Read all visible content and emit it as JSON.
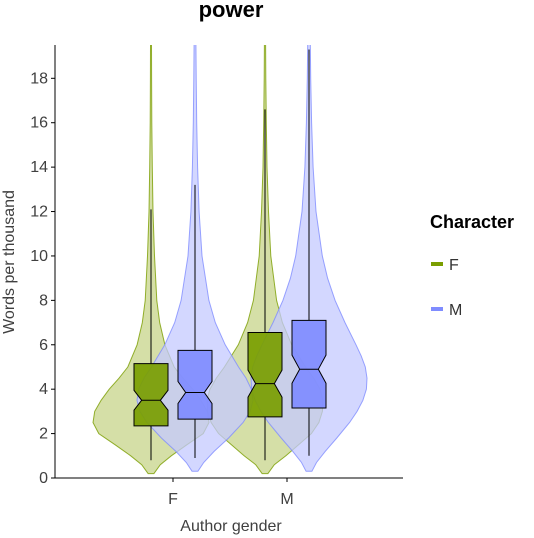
{
  "chart_data": {
    "type": "violin",
    "title": "power",
    "xlabel": "Author gender",
    "ylabel": "Words per thousand",
    "categories": [
      "F",
      "M"
    ],
    "ylim": [
      0,
      19.5
    ],
    "yticks": [
      0,
      2,
      4,
      6,
      8,
      10,
      12,
      14,
      16,
      18
    ],
    "grid": false,
    "legend": {
      "title": "Character",
      "position": "right",
      "entries": [
        {
          "label": "F",
          "color": "#7a9e00"
        },
        {
          "label": "M",
          "color": "#7f8cff"
        }
      ]
    },
    "series": [
      {
        "name": "F",
        "color": "#7a9e00",
        "fill": "#c7d48a",
        "groups": [
          {
            "category": "F",
            "box": {
              "q1": 2.35,
              "median": 3.5,
              "q3": 5.15,
              "whisker_low": 0.8,
              "whisker_high": 12.1
            },
            "violin": [
              [
                0.2,
                0.05
              ],
              [
                0.6,
                0.16
              ],
              [
                1.0,
                0.35
              ],
              [
                1.5,
                0.62
              ],
              [
                2.0,
                0.9
              ],
              [
                2.5,
                1.0
              ],
              [
                3.0,
                0.97
              ],
              [
                3.5,
                0.86
              ],
              [
                4.0,
                0.72
              ],
              [
                4.5,
                0.55
              ],
              [
                5.0,
                0.4
              ],
              [
                6.0,
                0.24
              ],
              [
                7.0,
                0.15
              ],
              [
                8.0,
                0.1
              ],
              [
                10.0,
                0.06
              ],
              [
                12.0,
                0.035
              ],
              [
                14.0,
                0.022
              ],
              [
                16.0,
                0.014
              ],
              [
                18.0,
                0.01
              ],
              [
                19.6,
                0.008
              ]
            ]
          },
          {
            "category": "M",
            "box": {
              "q1": 2.75,
              "median": 4.25,
              "q3": 6.55,
              "whisker_low": 0.8,
              "whisker_high": 16.6
            },
            "violin": [
              [
                0.2,
                0.05
              ],
              [
                0.6,
                0.16
              ],
              [
                1.0,
                0.36
              ],
              [
                1.5,
                0.58
              ],
              [
                2.0,
                0.8
              ],
              [
                2.5,
                0.93
              ],
              [
                3.0,
                0.99
              ],
              [
                3.5,
                1.0
              ],
              [
                4.0,
                0.95
              ],
              [
                4.5,
                0.84
              ],
              [
                5.0,
                0.7
              ],
              [
                6.0,
                0.46
              ],
              [
                7.0,
                0.3
              ],
              [
                8.0,
                0.2
              ],
              [
                10.0,
                0.1
              ],
              [
                12.0,
                0.06
              ],
              [
                14.0,
                0.035
              ],
              [
                16.0,
                0.022
              ],
              [
                18.0,
                0.014
              ],
              [
                19.6,
                0.01
              ]
            ]
          }
        ]
      },
      {
        "name": "M",
        "color": "#7f8cff",
        "fill": "#c4c9ff",
        "groups": [
          {
            "category": "F",
            "box": {
              "q1": 2.65,
              "median": 3.85,
              "q3": 5.75,
              "whisker_low": 0.9,
              "whisker_high": 13.2
            },
            "violin": [
              [
                0.3,
                0.05
              ],
              [
                0.7,
                0.15
              ],
              [
                1.2,
                0.33
              ],
              [
                1.8,
                0.58
              ],
              [
                2.5,
                0.83
              ],
              [
                3.0,
                0.95
              ],
              [
                3.5,
                1.0
              ],
              [
                4.0,
                0.97
              ],
              [
                4.5,
                0.88
              ],
              [
                5.0,
                0.75
              ],
              [
                6.0,
                0.52
              ],
              [
                7.0,
                0.35
              ],
              [
                8.0,
                0.24
              ],
              [
                10.0,
                0.12
              ],
              [
                12.0,
                0.07
              ],
              [
                14.0,
                0.045
              ],
              [
                16.0,
                0.03
              ],
              [
                18.0,
                0.02
              ],
              [
                19.6,
                0.015
              ]
            ]
          },
          {
            "category": "M",
            "box": {
              "q1": 3.15,
              "median": 4.9,
              "q3": 7.1,
              "whisker_low": 1.0,
              "whisker_high": 19.3
            },
            "violin": [
              [
                0.3,
                0.05
              ],
              [
                0.7,
                0.13
              ],
              [
                1.2,
                0.28
              ],
              [
                1.8,
                0.48
              ],
              [
                2.5,
                0.7
              ],
              [
                3.0,
                0.83
              ],
              [
                3.5,
                0.93
              ],
              [
                4.0,
                0.99
              ],
              [
                4.5,
                1.0
              ],
              [
                5.0,
                0.97
              ],
              [
                5.5,
                0.9
              ],
              [
                6.0,
                0.81
              ],
              [
                7.0,
                0.62
              ],
              [
                8.0,
                0.45
              ],
              [
                9.0,
                0.32
              ],
              [
                10.0,
                0.23
              ],
              [
                12.0,
                0.12
              ],
              [
                14.0,
                0.07
              ],
              [
                16.0,
                0.045
              ],
              [
                18.0,
                0.03
              ],
              [
                19.6,
                0.022
              ]
            ]
          }
        ]
      }
    ]
  }
}
